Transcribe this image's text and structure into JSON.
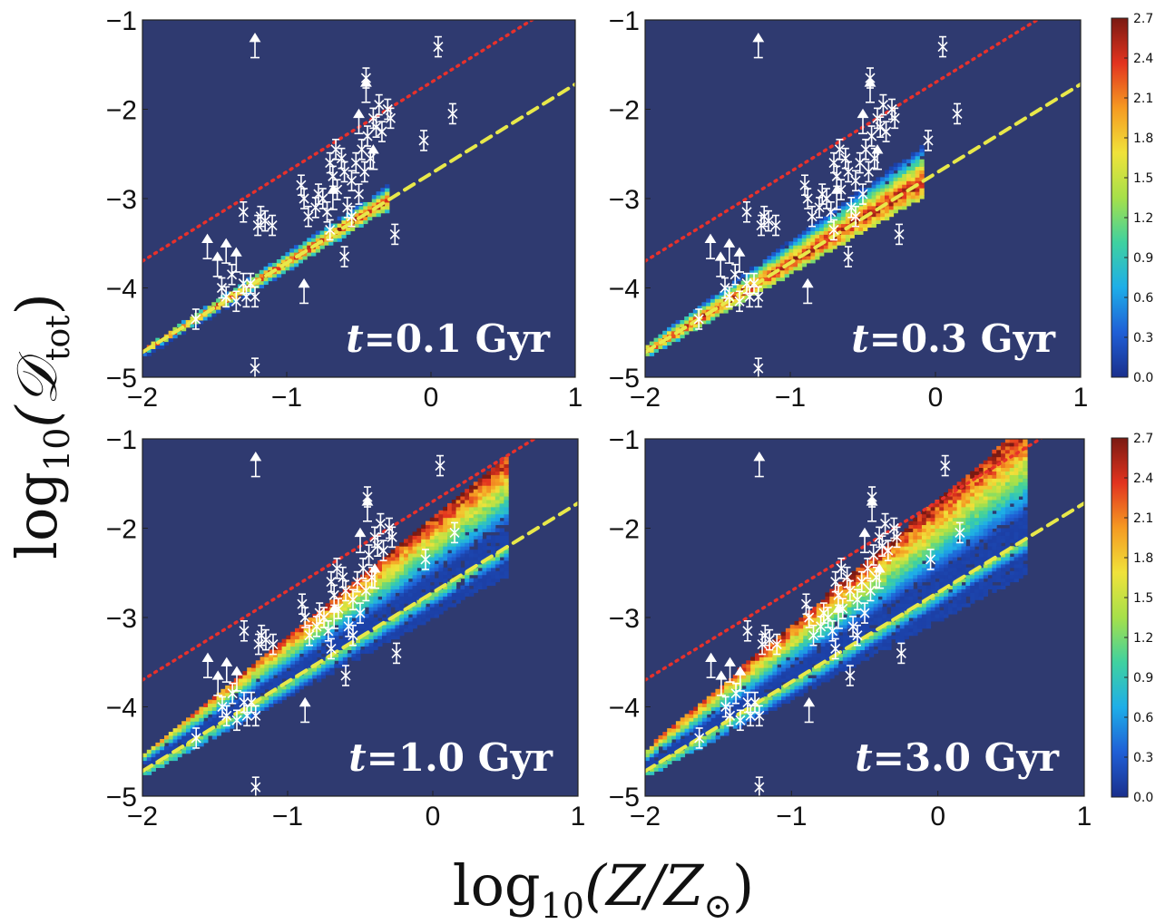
{
  "figure": {
    "xlabel": "log10(Z/Z⊙)",
    "ylabel": "log10(Dtot)",
    "xlabel_parts": {
      "base": "log",
      "sub": "10",
      "body": "(Z/Z",
      "sym": "⊙",
      "close": ")"
    },
    "ylabel_parts": {
      "base": "log",
      "sub": "10",
      "body": "(𝒟",
      "sub2": "tot",
      "close": ")"
    }
  },
  "colors": {
    "background": "#2f3a70",
    "red_line": "#e8302a",
    "yellow_line": "#e8e84a",
    "points": "#ffffff",
    "colormap": [
      "#1a2f8c",
      "#1f5fd6",
      "#1eaee8",
      "#3fd1a0",
      "#a6e04a",
      "#f0e23a",
      "#f59a22",
      "#e2331f",
      "#7a1a12"
    ]
  },
  "colorbar": {
    "min": 0.0,
    "max": 2.7,
    "ticks": [
      "0.0",
      "0.3",
      "0.6",
      "0.9",
      "1.2",
      "1.5",
      "1.8",
      "2.1",
      "2.4",
      "2.7"
    ]
  },
  "chart_data": [
    {
      "type": "heatmap",
      "panel_label": "t=0.1 Gyr",
      "label_t": "t",
      "label_rest": "=0.1 Gyr",
      "xlim": [
        -2,
        1
      ],
      "ylim": [
        -5,
        -1
      ],
      "xticks": [
        "−2",
        "−1",
        "0",
        "1"
      ],
      "yticks": [
        "−5",
        "−4",
        "−3",
        "−2",
        "−1"
      ],
      "spread": 0.12,
      "extent": [
        -2,
        -0.3
      ],
      "lines": [
        {
          "style": "dotted",
          "color": "red",
          "x": [
            -2,
            1
          ],
          "y": [
            -3.7,
            -0.7
          ]
        },
        {
          "style": "dashed",
          "color": "yellow",
          "x": [
            -2,
            1
          ],
          "y": [
            -4.72,
            -1.72
          ]
        }
      ]
    },
    {
      "type": "heatmap",
      "panel_label": "t=0.3 Gyr",
      "label_t": "t",
      "label_rest": "=0.3 Gyr",
      "xlim": [
        -2,
        1
      ],
      "ylim": [
        -5,
        -1
      ],
      "xticks": [
        "−2",
        "−1",
        "0",
        "1"
      ],
      "yticks": [
        "−5",
        "−4",
        "−3",
        "−2",
        "−1"
      ],
      "spread": 0.3,
      "extent": [
        -2,
        -0.1
      ],
      "lines": [
        {
          "style": "dotted",
          "color": "red",
          "x": [
            -2,
            1
          ],
          "y": [
            -3.7,
            -0.7
          ]
        },
        {
          "style": "dashed",
          "color": "yellow",
          "x": [
            -2,
            1
          ],
          "y": [
            -4.72,
            -1.72
          ]
        }
      ]
    },
    {
      "type": "heatmap",
      "panel_label": "t=1.0 Gyr",
      "label_t": "t",
      "label_rest": "=1.0 Gyr",
      "xlim": [
        -2,
        1
      ],
      "ylim": [
        -5,
        -1
      ],
      "xticks": [
        "−2",
        "−1",
        "0",
        "1"
      ],
      "yticks": [
        "−5",
        "−4",
        "−3",
        "−2",
        "−1"
      ],
      "spread": 0.75,
      "extent": [
        -2,
        0.5
      ],
      "lines": [
        {
          "style": "dotted",
          "color": "red",
          "x": [
            -2,
            1
          ],
          "y": [
            -3.7,
            -0.7
          ]
        },
        {
          "style": "dashed",
          "color": "yellow",
          "x": [
            -2,
            1
          ],
          "y": [
            -4.72,
            -1.72
          ]
        }
      ]
    },
    {
      "type": "heatmap",
      "panel_label": "t=3.0 Gyr",
      "label_t": "t",
      "label_rest": "=3.0 Gyr",
      "xlim": [
        -2,
        1
      ],
      "ylim": [
        -5,
        -1
      ],
      "xticks": [
        "−2",
        "−1",
        "0",
        "1"
      ],
      "yticks": [
        "−5",
        "−4",
        "−3",
        "−2",
        "−1"
      ],
      "spread": 0.95,
      "extent": [
        -2,
        0.6
      ],
      "lines": [
        {
          "style": "dotted",
          "color": "red",
          "x": [
            -2,
            1
          ],
          "y": [
            -3.7,
            -0.7
          ]
        },
        {
          "style": "dashed",
          "color": "yellow",
          "x": [
            -2,
            1
          ],
          "y": [
            -4.72,
            -1.72
          ]
        }
      ]
    }
  ],
  "observations": {
    "crosses": [
      [
        -1.63,
        -4.35
      ],
      [
        -1.45,
        -4.0
      ],
      [
        -1.42,
        -4.1
      ],
      [
        -1.38,
        -3.85
      ],
      [
        -1.35,
        -4.15
      ],
      [
        -1.3,
        -3.95
      ],
      [
        -1.28,
        -4.1
      ],
      [
        -1.25,
        -3.95
      ],
      [
        -1.22,
        -4.1
      ],
      [
        -1.2,
        -3.3
      ],
      [
        -1.18,
        -3.2
      ],
      [
        -1.15,
        -3.25
      ],
      [
        -1.1,
        -3.3
      ],
      [
        -1.3,
        -3.15
      ],
      [
        -1.22,
        -4.9
      ],
      [
        -0.9,
        -2.85
      ],
      [
        -0.88,
        -3.0
      ],
      [
        -0.85,
        -3.2
      ],
      [
        -0.8,
        -3.1
      ],
      [
        -0.78,
        -2.95
      ],
      [
        -0.75,
        -3.0
      ],
      [
        -0.72,
        -3.15
      ],
      [
        -0.7,
        -2.6
      ],
      [
        -0.68,
        -2.75
      ],
      [
        -0.65,
        -2.9
      ],
      [
        -0.62,
        -2.55
      ],
      [
        -0.6,
        -2.7
      ],
      [
        -0.58,
        -3.1
      ],
      [
        -0.55,
        -2.8
      ],
      [
        -0.52,
        -2.6
      ],
      [
        -0.5,
        -2.95
      ],
      [
        -0.48,
        -2.45
      ],
      [
        -0.46,
        -2.7
      ],
      [
        -0.44,
        -2.3
      ],
      [
        -0.42,
        -2.55
      ],
      [
        -0.4,
        -2.1
      ],
      [
        -0.38,
        -2.2
      ],
      [
        -0.36,
        -1.95
      ],
      [
        -0.34,
        -2.25
      ],
      [
        -0.3,
        -2.0
      ],
      [
        -0.28,
        -2.1
      ],
      [
        -0.25,
        -3.4
      ],
      [
        -0.05,
        -2.35
      ],
      [
        0.05,
        -1.3
      ],
      [
        0.15,
        -2.05
      ],
      [
        -0.6,
        -3.65
      ],
      [
        -0.45,
        -1.65
      ],
      [
        -0.7,
        -3.35
      ],
      [
        -0.55,
        -3.2
      ],
      [
        -0.66,
        -2.45
      ]
    ],
    "arrows": [
      [
        -1.55,
        -3.55
      ],
      [
        -1.48,
        -3.75
      ],
      [
        -1.42,
        -3.6
      ],
      [
        -1.35,
        -3.7
      ],
      [
        -1.22,
        -1.3
      ],
      [
        -0.88,
        -4.05
      ],
      [
        -0.5,
        -2.15
      ],
      [
        -0.45,
        -1.8
      ],
      [
        -0.68,
        -3.0
      ],
      [
        -0.4,
        -2.55
      ]
    ]
  }
}
